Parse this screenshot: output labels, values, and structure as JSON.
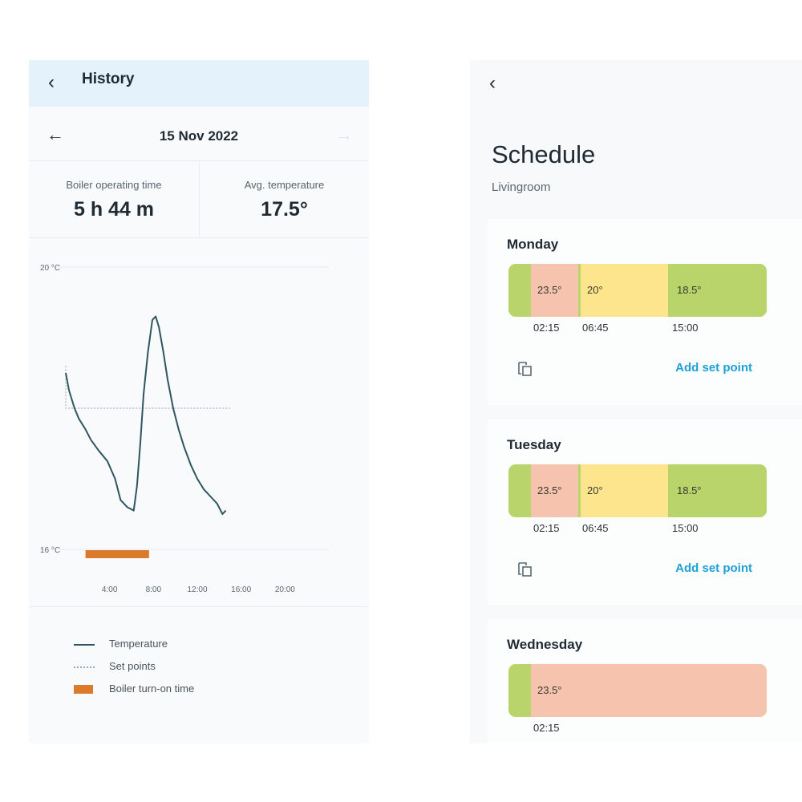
{
  "history": {
    "title": "History",
    "date": "15 Nov 2022",
    "stats": [
      {
        "label": "Boiler operating time",
        "value": "5 h 44 m"
      },
      {
        "label": "Avg. temperature",
        "value": "17.5°"
      }
    ],
    "chart_data": {
      "type": "line",
      "ylim": [
        16,
        20
      ],
      "xlim": [
        0,
        24
      ],
      "y_ticks": [
        "20 °C",
        "16 °C"
      ],
      "x_ticks": [
        {
          "value": 4,
          "label": "4:00"
        },
        {
          "value": 8,
          "label": "8:00"
        },
        {
          "value": 12,
          "label": "12:00"
        },
        {
          "value": 16,
          "label": "16:00"
        },
        {
          "value": 20,
          "label": "20:00"
        }
      ],
      "series": [
        {
          "name": "Temperature",
          "color": "#2f5561",
          "x": [
            0.0,
            0.3,
            0.8,
            1.2,
            1.8,
            2.3,
            3.0,
            3.8,
            4.5,
            5.0,
            5.6,
            6.2,
            6.5,
            6.8,
            7.1,
            7.5,
            7.9,
            8.2,
            8.5,
            8.9,
            9.3,
            9.8,
            10.3,
            10.8,
            11.4,
            12.0,
            12.6,
            13.2,
            13.8,
            14.3,
            14.6
          ],
          "y": [
            18.5,
            18.25,
            18.0,
            17.85,
            17.7,
            17.55,
            17.4,
            17.25,
            17.0,
            16.7,
            16.6,
            16.55,
            16.9,
            17.5,
            18.2,
            18.8,
            19.25,
            19.3,
            19.15,
            18.8,
            18.4,
            18.0,
            17.7,
            17.45,
            17.2,
            17.0,
            16.85,
            16.75,
            16.65,
            16.5,
            16.55
          ]
        },
        {
          "name": "Set points",
          "color": "#9aa6ad",
          "x": [
            0,
            0,
            15
          ],
          "y": [
            18.6,
            18.0,
            18.0
          ]
        }
      ],
      "bars": [
        {
          "name": "Boiler turn-on time",
          "color": "#dc7a2c",
          "start": 1.8,
          "end": 7.6
        }
      ]
    },
    "legend": [
      {
        "label": "Temperature",
        "color": "#2f5561",
        "style": "solid"
      },
      {
        "label": "Set points",
        "color": "#9aa6ad",
        "style": "dotted"
      },
      {
        "label": "Boiler turn-on time",
        "color": "#dc7a2c",
        "style": "block"
      }
    ]
  },
  "schedule": {
    "title": "Schedule",
    "room": "Livingroom",
    "add_set_point": "Add set point",
    "colors": {
      "green": "#b9d46a",
      "salmon": "#f6c3ae",
      "yellow": "#fce58c",
      "link": "#1d9fd8"
    },
    "days": [
      {
        "name": "Monday",
        "segments": [
          {
            "temp": "23.5°",
            "color": "#f6c3ae",
            "start": "02:15"
          },
          {
            "temp": "20°",
            "color": "#fce58c",
            "start": "06:45"
          },
          {
            "temp": "18.5°",
            "color": "#b9d46a",
            "start": "15:00"
          }
        ]
      },
      {
        "name": "Tuesday",
        "segments": [
          {
            "temp": "23.5°",
            "color": "#f6c3ae",
            "start": "02:15"
          },
          {
            "temp": "20°",
            "color": "#fce58c",
            "start": "06:45"
          },
          {
            "temp": "18.5°",
            "color": "#b9d46a",
            "start": "15:00"
          }
        ]
      },
      {
        "name": "Wednesday",
        "segments": [
          {
            "temp": "23.5°",
            "color": "#f6c3ae",
            "start": "02:15"
          }
        ]
      }
    ]
  }
}
